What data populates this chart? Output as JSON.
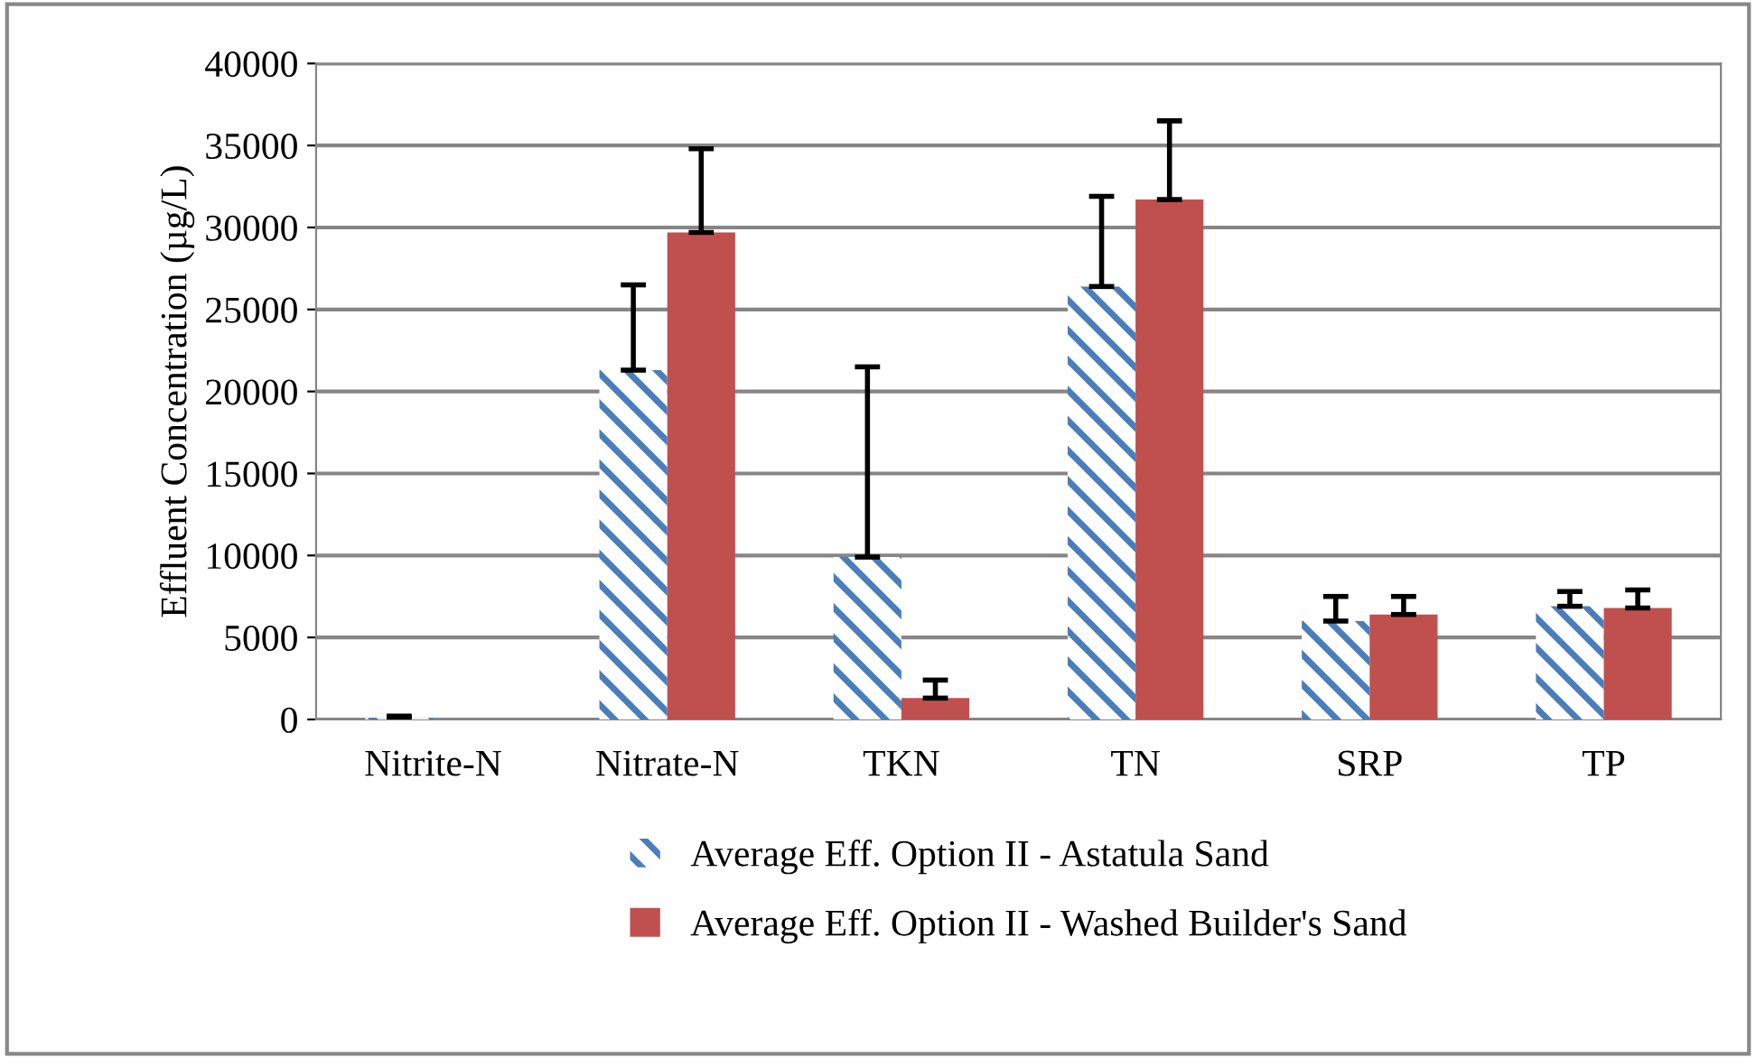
{
  "chart_data": {
    "type": "bar",
    "ylabel": "Effluent Concentration (µg/L)",
    "categories": [
      "Nitrite-N",
      "Nitrate-N",
      "TKN",
      "TN",
      "SRP",
      "TP"
    ],
    "series": [
      {
        "name": "Average Eff. Option II - Astatula Sand",
        "color": "#4a7ebb",
        "values": [
          100,
          21300,
          9900,
          26400,
          6000,
          6900
        ],
        "errors": [
          [
            100,
            200
          ],
          [
            21300,
            26500
          ],
          [
            9900,
            21500
          ],
          [
            26400,
            31900
          ],
          [
            6000,
            7500
          ],
          [
            6900,
            7800
          ]
        ]
      },
      {
        "name": "Average Eff. Option II - Washed Builder's Sand",
        "color": "#c0504d",
        "values": [
          0,
          29700,
          1300,
          31700,
          6400,
          6800
        ],
        "errors": [
          null,
          [
            29700,
            34800
          ],
          [
            1300,
            2400
          ],
          [
            31700,
            36500
          ],
          [
            6400,
            7500
          ],
          [
            6800,
            7900
          ]
        ]
      }
    ],
    "ylim": [
      0,
      40000
    ],
    "yticks": [
      0,
      5000,
      10000,
      15000,
      20000,
      25000,
      30000,
      35000,
      40000
    ],
    "grid": "y",
    "legend": "bottom"
  }
}
